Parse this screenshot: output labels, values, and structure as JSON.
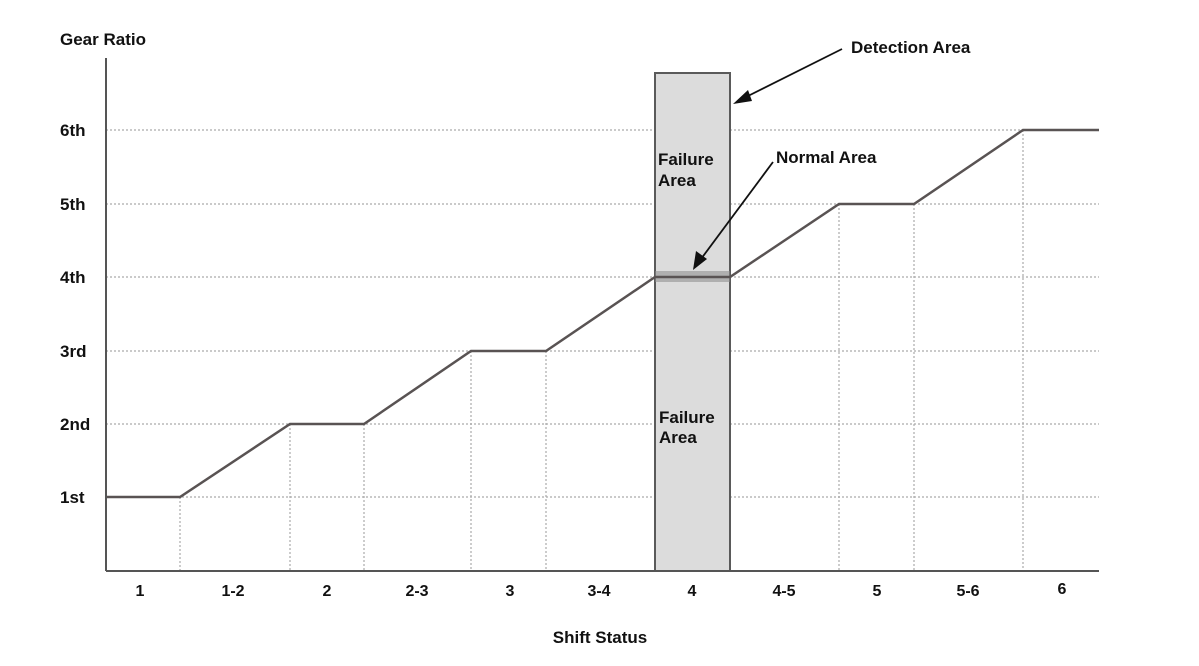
{
  "diagram": {
    "y_axis_title": "Gear Ratio",
    "x_axis_title": "Shift Status",
    "y_levels": [
      "1st",
      "2nd",
      "3rd",
      "4th",
      "5th",
      "6th"
    ],
    "shift_statuses": [
      "1",
      "1-2",
      "2",
      "2-3",
      "3",
      "3-4",
      "4",
      "4-5",
      "5",
      "5-6",
      "6"
    ],
    "gear_ratio_by_status": [
      1,
      null,
      2,
      null,
      3,
      null,
      4,
      null,
      5,
      null,
      6
    ],
    "detection_status": "4",
    "labels": {
      "detection_area": "Detection Area",
      "normal_area": "Normal Area",
      "failure_area_line1": "Failure",
      "failure_area_line2": "Area"
    },
    "colors": {
      "line": "#595353",
      "detection_fill": "#dcdcdc",
      "detection_border": "#5a5a5a",
      "normal_band": "#8a8a8a",
      "gridline": "#aaaaaa",
      "axis": "#555555",
      "text": "#111111"
    }
  }
}
